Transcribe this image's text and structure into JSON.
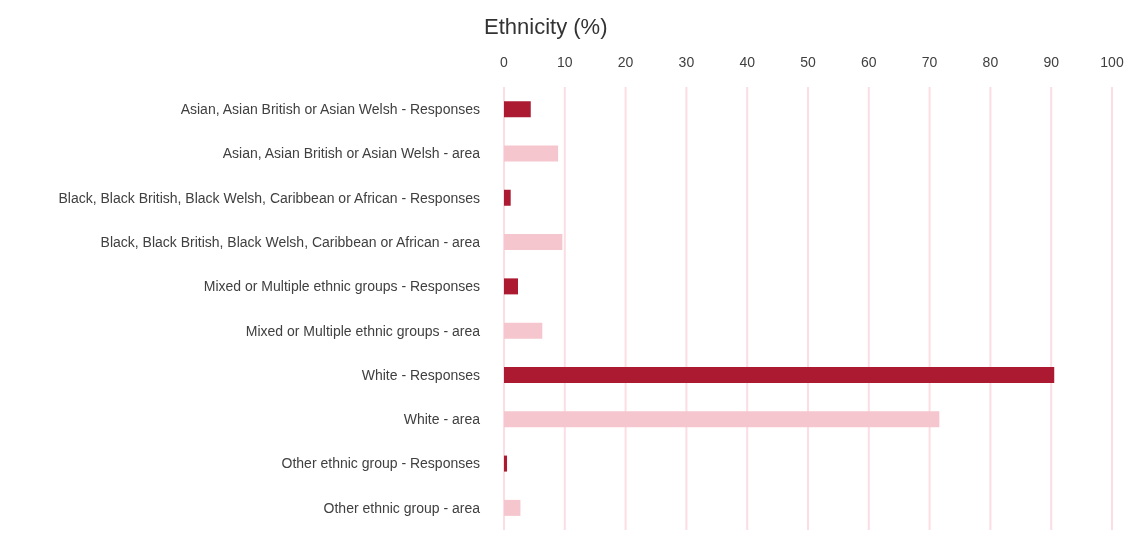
{
  "chart_data": {
    "type": "bar",
    "orientation": "horizontal",
    "title": "Ethnicity (%)",
    "categories": [
      "Asian, Asian British or Asian Welsh - Responses",
      "Asian, Asian British or Asian Welsh - area",
      "Black, Black British, Black Welsh, Caribbean or African - Responses",
      "Black, Black British, Black Welsh, Caribbean or African - area",
      "Mixed or Multiple ethnic groups - Responses",
      "Mixed or Multiple ethnic groups - area",
      "White - Responses",
      "White - area",
      "Other ethnic group - Responses",
      "Other ethnic group - area"
    ],
    "values": [
      4.4,
      8.9,
      1.1,
      9.6,
      2.3,
      6.3,
      90.5,
      71.6,
      0.5,
      2.7
    ],
    "colors": [
      "#ab1a30",
      "#f5c6cd",
      "#ab1a30",
      "#f5c6cd",
      "#ab1a30",
      "#f5c6cd",
      "#ab1a30",
      "#f5c6cd",
      "#ab1a30",
      "#f5c6cd"
    ],
    "xlim": [
      0,
      100
    ],
    "xticks": [
      0,
      10,
      20,
      30,
      40,
      50,
      60,
      70,
      80,
      90,
      100
    ],
    "grid": "x"
  }
}
